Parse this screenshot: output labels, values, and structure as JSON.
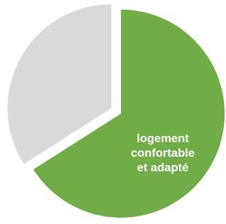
{
  "chart_data": {
    "type": "pie",
    "title": "",
    "slices": [
      {
        "label": "logement confortable et adapté",
        "label_lines": [
          "logement",
          "confortable",
          "et adapté"
        ],
        "value": 66,
        "color": "#70ad47"
      },
      {
        "label": "",
        "label_lines": [],
        "value": 34,
        "color": "#d9d9d9"
      }
    ],
    "legend": "none"
  }
}
